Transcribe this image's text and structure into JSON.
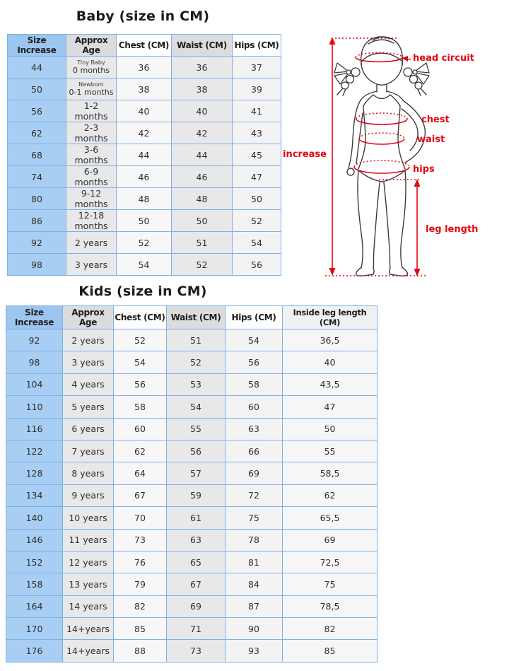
{
  "baby": {
    "title": "Baby (size in CM)",
    "columns": [
      "Size Increase",
      "Approx Age",
      "Chest (CM)",
      "Waist (CM)",
      "Hips (CM)"
    ],
    "rows": [
      {
        "size": "44",
        "age_note": "Tiny Baby",
        "age": "0 months",
        "chest": "36",
        "waist": "36",
        "hips": "37"
      },
      {
        "size": "50",
        "age_note": "Newborn",
        "age": "0-1 months",
        "chest": "38",
        "waist": "38",
        "hips": "39"
      },
      {
        "size": "56",
        "age": "1-2 months",
        "chest": "40",
        "waist": "40",
        "hips": "41"
      },
      {
        "size": "62",
        "age": "2-3 months",
        "chest": "42",
        "waist": "42",
        "hips": "43"
      },
      {
        "size": "68",
        "age": "3-6 months",
        "chest": "44",
        "waist": "44",
        "hips": "45"
      },
      {
        "size": "74",
        "age": "6-9 months",
        "chest": "46",
        "waist": "46",
        "hips": "47"
      },
      {
        "size": "80",
        "age": "9-12 months",
        "chest": "48",
        "waist": "48",
        "hips": "50"
      },
      {
        "size": "86",
        "age": "12-18 months",
        "chest": "50",
        "waist": "50",
        "hips": "52"
      },
      {
        "size": "92",
        "age": "2 years",
        "chest": "52",
        "waist": "51",
        "hips": "54"
      },
      {
        "size": "98",
        "age": "3 years",
        "chest": "54",
        "waist": "52",
        "hips": "56"
      }
    ]
  },
  "kids": {
    "title": "Kids (size in CM)",
    "columns": [
      "Size Increase",
      "Approx Age",
      "Chest (CM)",
      "Waist (CM)",
      "Hips (CM)",
      "Inside leg length (CM)"
    ],
    "rows": [
      {
        "size": "92",
        "age": "2 years",
        "chest": "52",
        "waist": "51",
        "hips": "54",
        "leg": "36,5"
      },
      {
        "size": "98",
        "age": "3 years",
        "chest": "54",
        "waist": "52",
        "hips": "56",
        "leg": "40"
      },
      {
        "size": "104",
        "age": "4 years",
        "chest": "56",
        "waist": "53",
        "hips": "58",
        "leg": "43,5"
      },
      {
        "size": "110",
        "age": "5 years",
        "chest": "58",
        "waist": "54",
        "hips": "60",
        "leg": "47"
      },
      {
        "size": "116",
        "age": "6 years",
        "chest": "60",
        "waist": "55",
        "hips": "63",
        "leg": "50"
      },
      {
        "size": "122",
        "age": "7 years",
        "chest": "62",
        "waist": "56",
        "hips": "66",
        "leg": "55"
      },
      {
        "size": "128",
        "age": "8 years",
        "chest": "64",
        "waist": "57",
        "hips": "69",
        "leg": "58,5"
      },
      {
        "size": "134",
        "age": "9 years",
        "chest": "67",
        "waist": "59",
        "hips": "72",
        "leg": "62"
      },
      {
        "size": "140",
        "age": "10 years",
        "chest": "70",
        "waist": "61",
        "hips": "75",
        "leg": "65,5"
      },
      {
        "size": "146",
        "age": "11 years",
        "chest": "73",
        "waist": "63",
        "hips": "78",
        "leg": "69"
      },
      {
        "size": "152",
        "age": "12 years",
        "chest": "76",
        "waist": "65",
        "hips": "81",
        "leg": "72,5"
      },
      {
        "size": "158",
        "age": "13 years",
        "chest": "79",
        "waist": "67",
        "hips": "84",
        "leg": "75"
      },
      {
        "size": "164",
        "age": "14 years",
        "chest": "82",
        "waist": "69",
        "hips": "87",
        "leg": "78,5"
      },
      {
        "size": "170",
        "age": "14+years",
        "chest": "85",
        "waist": "71",
        "hips": "90",
        "leg": "82"
      },
      {
        "size": "176",
        "age": "14+years",
        "chest": "88",
        "waist": "73",
        "hips": "93",
        "leg": "85"
      }
    ]
  },
  "figure": {
    "labels": {
      "increase": "increase",
      "head": "head circuit",
      "chest": "chest",
      "waist": "waist",
      "hips": "hips",
      "leg_length": "leg length"
    }
  },
  "colors": {
    "accent_red": "#e30613",
    "cell_blue": "#a9cef3",
    "header_blue": "#9cc5ef",
    "border_blue": "#7db1ea",
    "header_gray": "#dcdcdc",
    "cell_gray": "#e8e8e8",
    "title_color": "#1c1c1e"
  },
  "chart_data": [
    {
      "type": "table",
      "title": "Baby (size in CM)",
      "columns": [
        "Size Increase",
        "Approx Age",
        "Chest (CM)",
        "Waist (CM)",
        "Hips (CM)"
      ],
      "rows": [
        [
          "44",
          "Tiny Baby 0 months",
          "36",
          "36",
          "37"
        ],
        [
          "50",
          "Newborn 0-1 months",
          "38",
          "38",
          "39"
        ],
        [
          "56",
          "1-2 months",
          "40",
          "40",
          "41"
        ],
        [
          "62",
          "2-3 months",
          "42",
          "42",
          "43"
        ],
        [
          "68",
          "3-6 months",
          "44",
          "44",
          "45"
        ],
        [
          "74",
          "6-9 months",
          "46",
          "46",
          "47"
        ],
        [
          "80",
          "9-12 months",
          "48",
          "48",
          "50"
        ],
        [
          "86",
          "12-18 months",
          "50",
          "50",
          "52"
        ],
        [
          "92",
          "2 years",
          "52",
          "51",
          "54"
        ],
        [
          "98",
          "3 years",
          "54",
          "52",
          "56"
        ]
      ]
    },
    {
      "type": "table",
      "title": "Kids (size in CM)",
      "columns": [
        "Size Increase",
        "Approx Age",
        "Chest (CM)",
        "Waist (CM)",
        "Hips (CM)",
        "Inside leg length (CM)"
      ],
      "rows": [
        [
          "92",
          "2 years",
          "52",
          "51",
          "54",
          "36,5"
        ],
        [
          "98",
          "3 years",
          "54",
          "52",
          "56",
          "40"
        ],
        [
          "104",
          "4 years",
          "56",
          "53",
          "58",
          "43,5"
        ],
        [
          "110",
          "5 years",
          "58",
          "54",
          "60",
          "47"
        ],
        [
          "116",
          "6 years",
          "60",
          "55",
          "63",
          "50"
        ],
        [
          "122",
          "7 years",
          "62",
          "56",
          "66",
          "55"
        ],
        [
          "128",
          "8 years",
          "64",
          "57",
          "69",
          "58,5"
        ],
        [
          "134",
          "9 years",
          "67",
          "59",
          "72",
          "62"
        ],
        [
          "140",
          "10 years",
          "70",
          "61",
          "75",
          "65,5"
        ],
        [
          "146",
          "11 years",
          "73",
          "63",
          "78",
          "69"
        ],
        [
          "152",
          "12 years",
          "76",
          "65",
          "81",
          "72,5"
        ],
        [
          "158",
          "13 years",
          "79",
          "67",
          "84",
          "75"
        ],
        [
          "164",
          "14 years",
          "82",
          "69",
          "87",
          "78,5"
        ],
        [
          "170",
          "14+years",
          "85",
          "71",
          "90",
          "82"
        ],
        [
          "176",
          "14+years",
          "88",
          "73",
          "93",
          "85"
        ]
      ]
    }
  ]
}
